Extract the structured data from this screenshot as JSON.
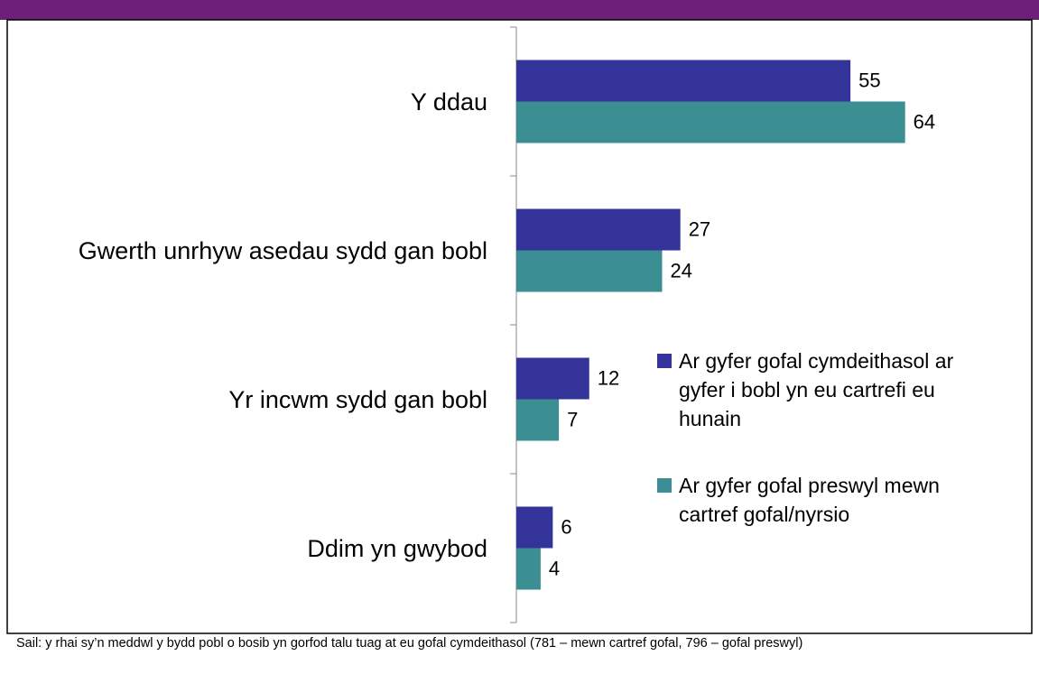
{
  "chart_data": {
    "type": "hbar",
    "categories": [
      "Y ddau",
      "Gwerth unrhyw asedau sydd gan bobl",
      "Yr incwm sydd gan bobl",
      "Ddim yn gwybod"
    ],
    "series": [
      {
        "name": "Ar gyfer gofal cymdeithasol ar gyfer i bobl yn eu cartrefi eu hunain",
        "color": "#333399",
        "values": [
          55,
          27,
          12,
          6
        ]
      },
      {
        "name": "Ar gyfer gofal preswyl mewn cartref gofal/nyrsio",
        "color": "#3b8e91",
        "values": [
          64,
          24,
          7,
          4
        ]
      }
    ],
    "xlim": [
      0,
      85
    ],
    "legend": "center-right",
    "note": "Sail: y rhai sy’n meddwl y bydd pobl o bosib yn gorfod talu tuag at eu gofal cymdeithasol (781 – mewn cartref gofal, 796 – gofal preswyl)"
  }
}
